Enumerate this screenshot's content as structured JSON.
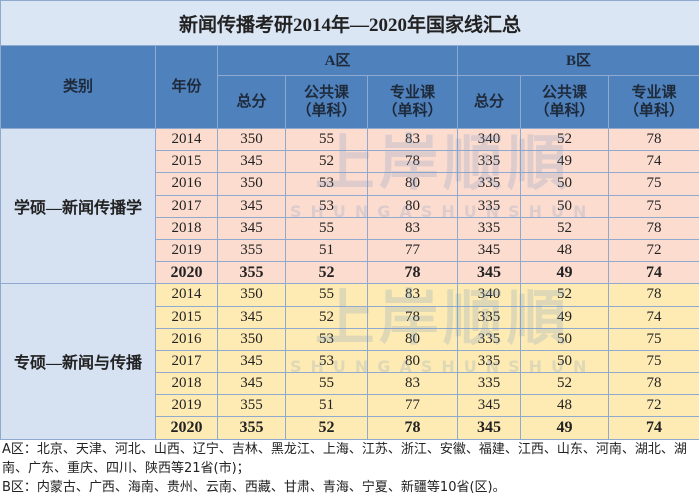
{
  "title": "新闻传播考研2014年—2020年国家线汇总",
  "header": {
    "category": "类别",
    "year": "年份",
    "zone_a": "A区",
    "zone_b": "B区",
    "columns": [
      "总分",
      "公共课\n（单科）",
      "专业课\n（单科）",
      "总分",
      "公共课\n（单科）",
      "专业课\n（单科）"
    ]
  },
  "groups": [
    {
      "category": "学硕—新闻传播学",
      "rows": [
        {
          "year": 2014,
          "values": [
            350,
            55,
            83,
            340,
            52,
            78
          ]
        },
        {
          "year": 2015,
          "values": [
            345,
            52,
            78,
            335,
            49,
            74
          ]
        },
        {
          "year": 2016,
          "values": [
            350,
            53,
            80,
            335,
            50,
            75
          ]
        },
        {
          "year": 2017,
          "values": [
            345,
            53,
            80,
            335,
            50,
            75
          ]
        },
        {
          "year": 2018,
          "values": [
            345,
            55,
            83,
            335,
            52,
            78
          ]
        },
        {
          "year": 2019,
          "values": [
            355,
            51,
            77,
            345,
            48,
            72
          ]
        },
        {
          "year": 2020,
          "values": [
            355,
            52,
            78,
            345,
            49,
            74
          ]
        }
      ]
    },
    {
      "category": "专硕—新闻与传播",
      "rows": [
        {
          "year": 2014,
          "values": [
            350,
            55,
            83,
            340,
            52,
            78
          ]
        },
        {
          "year": 2015,
          "values": [
            345,
            52,
            78,
            335,
            49,
            74
          ]
        },
        {
          "year": 2016,
          "values": [
            350,
            53,
            80,
            335,
            50,
            75
          ]
        },
        {
          "year": 2017,
          "values": [
            345,
            53,
            80,
            335,
            50,
            75
          ]
        },
        {
          "year": 2018,
          "values": [
            345,
            55,
            83,
            335,
            52,
            78
          ]
        },
        {
          "year": 2019,
          "values": [
            355,
            51,
            77,
            345,
            48,
            72
          ]
        },
        {
          "year": 2020,
          "values": [
            355,
            52,
            78,
            345,
            49,
            74
          ]
        }
      ]
    }
  ],
  "footer": [
    "A区：北京、天津、河北、山西、辽宁、吉林、黑龙江、上海、江苏、浙江、安徽、福建、江西、山东、河南、湖北、湖南、广东、重庆、四川、陕西等21省(市)；",
    "B区：内蒙古、广西、海南、贵州、云南、西藏、甘肃、青海、宁夏、新疆等10省(区)。"
  ],
  "watermark": {
    "text": "上岸顺順",
    "subtext": "SHUNGASHUNSHUN"
  }
}
